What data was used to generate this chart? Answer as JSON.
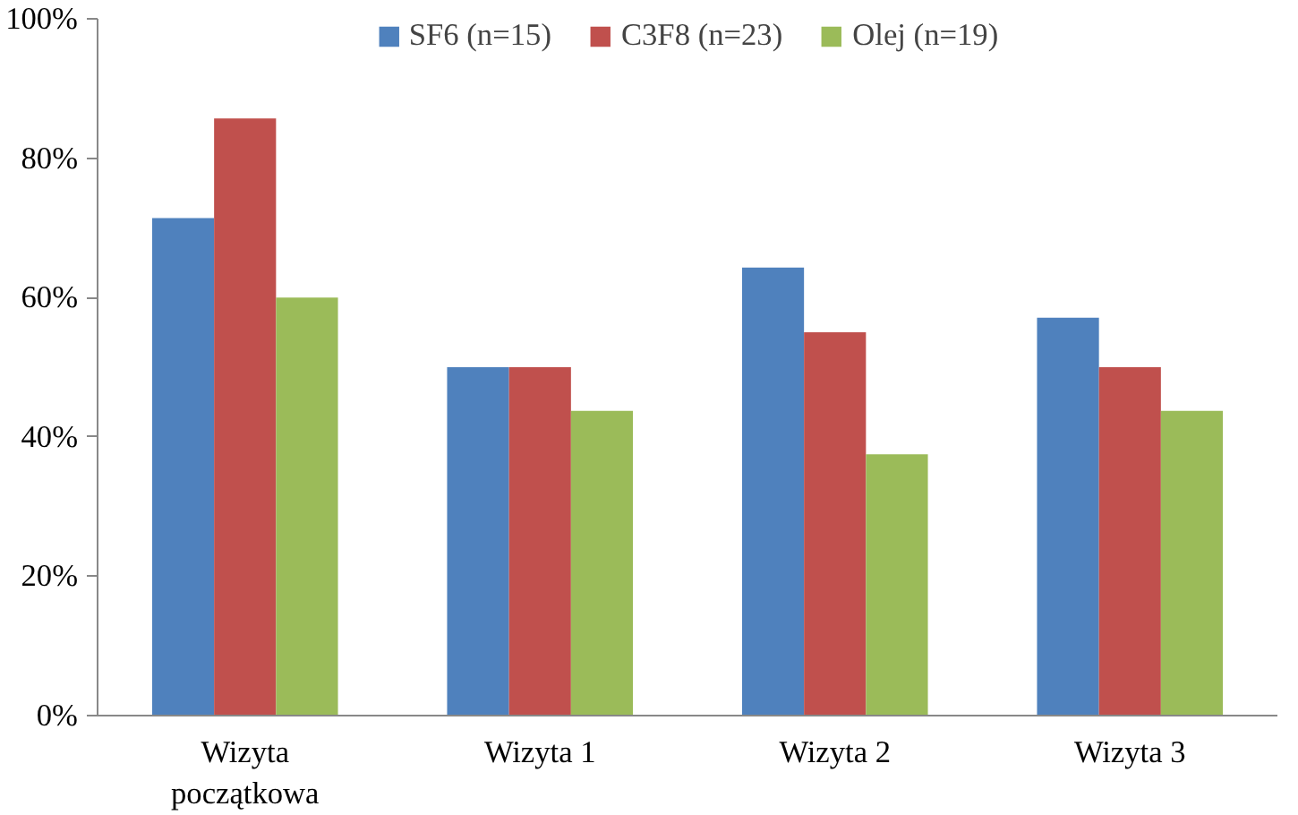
{
  "chart_data": {
    "type": "bar",
    "categories": [
      "Wizyta\npoczątkowa",
      "Wizyta 1",
      "Wizyta 2",
      "Wizyta 3"
    ],
    "series": [
      {
        "name": "SF6 (n=15)",
        "color": "#4f81bd",
        "values": [
          71.4,
          50,
          64.3,
          57.1
        ]
      },
      {
        "name": "C3F8 (n=23)",
        "color": "#c0504d",
        "values": [
          85.7,
          50,
          55,
          50
        ]
      },
      {
        "name": "Olej (n=19)",
        "color": "#9bbb59",
        "values": [
          60,
          43.75,
          37.5,
          43.75
        ]
      }
    ],
    "ylim": [
      0,
      100
    ],
    "yticks": [
      {
        "value": 0,
        "label": "0%"
      },
      {
        "value": 20,
        "label": "20%"
      },
      {
        "value": 40,
        "label": "40%"
      },
      {
        "value": 60,
        "label": "60%"
      },
      {
        "value": 80,
        "label": "80%"
      },
      {
        "value": 100,
        "label": "100%"
      }
    ],
    "grid": false,
    "legend": "top"
  }
}
